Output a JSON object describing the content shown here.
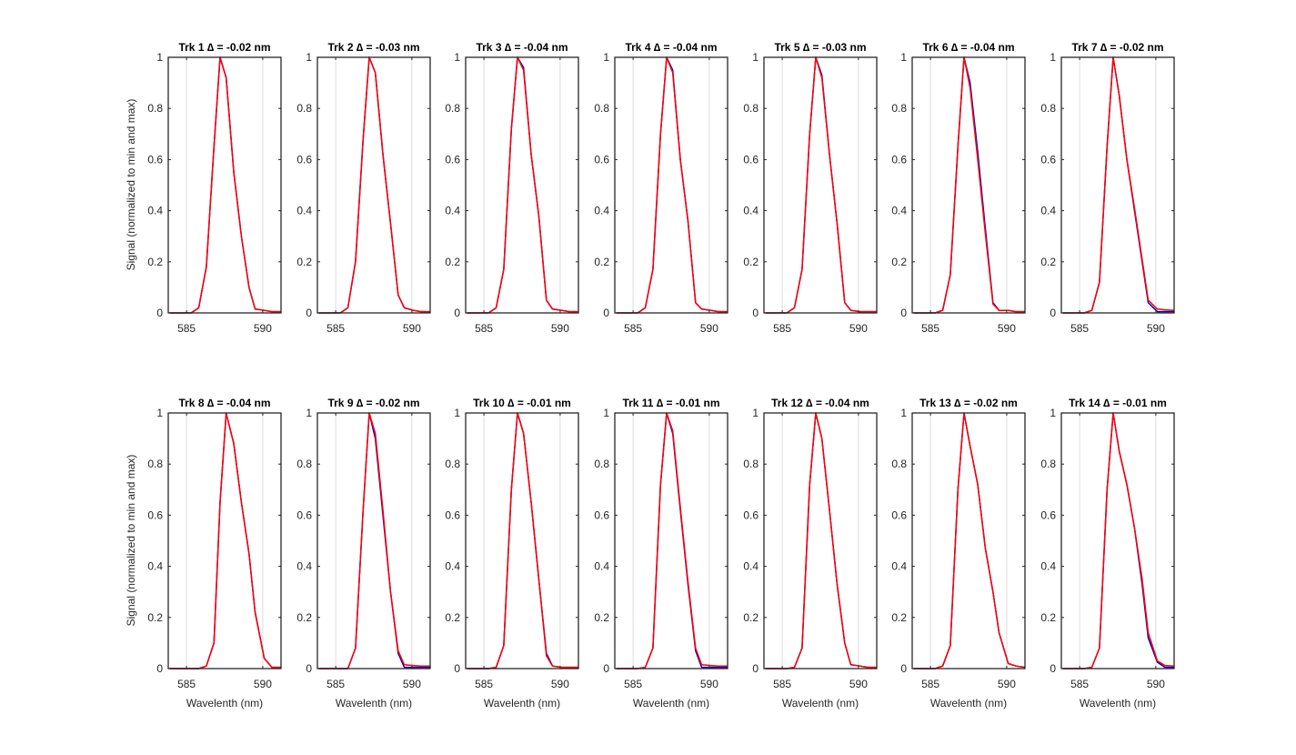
{
  "figure": {
    "ylabel": "Signal (normalized to min and max)",
    "xlabel": "Wavelenth (nm)",
    "colors": {
      "series_a": "#0000cc",
      "series_b": "#ff0000",
      "grid": "#dcdcdc",
      "axis": "#262626"
    }
  },
  "chart_data": [
    {
      "type": "line",
      "title": "Trk 1 ∆ = -0.02 nm",
      "xlim": [
        583.8,
        591.2
      ],
      "ylim": [
        0,
        1
      ],
      "xticks": [
        585,
        590
      ],
      "yticks": [
        0,
        0.2,
        0.4,
        0.6,
        0.8,
        1
      ],
      "grid": true,
      "x": [
        583.9,
        584.6,
        585.3,
        585.8,
        586.3,
        586.8,
        587.2,
        587.6,
        588.1,
        588.6,
        589.1,
        589.5,
        590.1,
        590.6,
        591.2
      ],
      "series": [
        {
          "values": [
            0,
            0,
            0,
            0.02,
            0.18,
            0.65,
            1.0,
            0.92,
            0.55,
            0.3,
            0.1,
            0.015,
            0.01,
            0.005,
            0.005
          ]
        },
        {
          "values": [
            0,
            0,
            0,
            0.02,
            0.18,
            0.65,
            1.0,
            0.92,
            0.55,
            0.3,
            0.1,
            0.015,
            0.01,
            0.005,
            0.005
          ]
        }
      ]
    },
    {
      "type": "line",
      "title": "Trk 2 ∆ = -0.03 nm",
      "xlim": [
        583.8,
        591.2
      ],
      "ylim": [
        0,
        1
      ],
      "xticks": [
        585,
        590
      ],
      "yticks": [
        0,
        0.2,
        0.4,
        0.6,
        0.8,
        1
      ],
      "grid": true,
      "x": [
        583.9,
        584.6,
        585.3,
        585.8,
        586.3,
        586.8,
        587.2,
        587.6,
        588.1,
        588.6,
        589.1,
        589.5,
        590.1,
        590.6,
        591.2
      ],
      "series": [
        {
          "values": [
            0,
            0,
            0,
            0.02,
            0.2,
            0.68,
            1.0,
            0.94,
            0.62,
            0.35,
            0.07,
            0.02,
            0.01,
            0.005,
            0.005
          ]
        },
        {
          "values": [
            0,
            0,
            0,
            0.02,
            0.2,
            0.68,
            1.0,
            0.94,
            0.62,
            0.35,
            0.07,
            0.02,
            0.01,
            0.005,
            0.005
          ]
        }
      ]
    },
    {
      "type": "line",
      "title": "Trk 3 ∆ = -0.04 nm",
      "xlim": [
        583.8,
        591.2
      ],
      "ylim": [
        0,
        1
      ],
      "xticks": [
        585,
        590
      ],
      "yticks": [
        0,
        0.2,
        0.4,
        0.6,
        0.8,
        1
      ],
      "grid": true,
      "x": [
        583.9,
        584.6,
        585.3,
        585.8,
        586.3,
        586.8,
        587.2,
        587.6,
        588.1,
        588.6,
        589.1,
        589.5,
        590.1,
        590.6,
        591.2
      ],
      "series": [
        {
          "values": [
            0,
            0,
            0,
            0.02,
            0.17,
            0.72,
            1.0,
            0.96,
            0.62,
            0.38,
            0.05,
            0.015,
            0.01,
            0.005,
            0.005
          ]
        },
        {
          "values": [
            0,
            0,
            0,
            0.02,
            0.17,
            0.72,
            1.0,
            0.95,
            0.62,
            0.38,
            0.05,
            0.015,
            0.01,
            0.005,
            0.005
          ]
        }
      ]
    },
    {
      "type": "line",
      "title": "Trk 4 ∆ = -0.04 nm",
      "xlim": [
        583.8,
        591.2
      ],
      "ylim": [
        0,
        1
      ],
      "xticks": [
        585,
        590
      ],
      "yticks": [
        0,
        0.2,
        0.4,
        0.6,
        0.8,
        1
      ],
      "grid": true,
      "x": [
        583.9,
        584.6,
        585.3,
        585.8,
        586.3,
        586.8,
        587.2,
        587.6,
        588.1,
        588.6,
        589.1,
        589.5,
        590.1,
        590.6,
        591.2
      ],
      "series": [
        {
          "values": [
            0,
            0,
            0,
            0.02,
            0.17,
            0.7,
            1.0,
            0.95,
            0.6,
            0.36,
            0.04,
            0.015,
            0.01,
            0.005,
            0.005
          ]
        },
        {
          "values": [
            0,
            0,
            0,
            0.02,
            0.17,
            0.7,
            1.0,
            0.94,
            0.6,
            0.36,
            0.04,
            0.015,
            0.01,
            0.005,
            0.005
          ]
        }
      ]
    },
    {
      "type": "line",
      "title": "Trk 5 ∆ = -0.03 nm",
      "xlim": [
        583.8,
        591.2
      ],
      "ylim": [
        0,
        1
      ],
      "xticks": [
        585,
        590
      ],
      "yticks": [
        0,
        0.2,
        0.4,
        0.6,
        0.8,
        1
      ],
      "grid": true,
      "x": [
        583.9,
        584.6,
        585.3,
        585.8,
        586.3,
        586.8,
        587.2,
        587.6,
        588.1,
        588.6,
        589.1,
        589.5,
        590.1,
        590.6,
        591.2
      ],
      "series": [
        {
          "values": [
            0,
            0,
            0,
            0.02,
            0.17,
            0.7,
            1.0,
            0.93,
            0.62,
            0.35,
            0.04,
            0.01,
            0.005,
            0.005,
            0.005
          ]
        },
        {
          "values": [
            0,
            0,
            0,
            0.02,
            0.17,
            0.7,
            1.0,
            0.92,
            0.62,
            0.35,
            0.04,
            0.01,
            0.005,
            0.005,
            0.005
          ]
        }
      ]
    },
    {
      "type": "line",
      "title": "Trk 6 ∆ = -0.04 nm",
      "xlim": [
        583.8,
        591.2
      ],
      "ylim": [
        0,
        1
      ],
      "xticks": [
        585,
        590
      ],
      "yticks": [
        0,
        0.2,
        0.4,
        0.6,
        0.8,
        1
      ],
      "grid": true,
      "x": [
        583.9,
        584.6,
        585.3,
        585.8,
        586.3,
        586.8,
        587.2,
        587.6,
        588.1,
        588.6,
        589.1,
        589.5,
        590.1,
        590.6,
        591.2
      ],
      "series": [
        {
          "values": [
            0,
            0,
            0,
            0.01,
            0.15,
            0.65,
            1.0,
            0.9,
            0.63,
            0.33,
            0.04,
            0.01,
            0.01,
            0.005,
            0.005
          ]
        },
        {
          "values": [
            0,
            0,
            0,
            0.01,
            0.15,
            0.65,
            1.0,
            0.88,
            0.6,
            0.31,
            0.035,
            0.01,
            0.01,
            0.005,
            0.005
          ]
        }
      ]
    },
    {
      "type": "line",
      "title": "Trk 7 ∆ = -0.02 nm",
      "xlim": [
        583.8,
        591.2
      ],
      "ylim": [
        0,
        1
      ],
      "xticks": [
        585,
        590
      ],
      "yticks": [
        0,
        0.2,
        0.4,
        0.6,
        0.8,
        1
      ],
      "grid": true,
      "x": [
        583.9,
        584.6,
        585.3,
        585.8,
        586.3,
        586.8,
        587.2,
        587.6,
        588.1,
        588.6,
        589.1,
        589.5,
        590.1,
        590.6,
        591.2
      ],
      "series": [
        {
          "values": [
            0,
            0,
            0,
            0.01,
            0.12,
            0.65,
            1.0,
            0.85,
            0.6,
            0.4,
            0.2,
            0.04,
            0.005,
            0.005,
            0.005
          ]
        },
        {
          "values": [
            0,
            0,
            0,
            0.01,
            0.12,
            0.65,
            1.0,
            0.85,
            0.6,
            0.41,
            0.21,
            0.05,
            0.015,
            0.012,
            0.01
          ]
        }
      ]
    },
    {
      "type": "line",
      "title": "Trk 8 ∆ = -0.04 nm",
      "xlim": [
        583.8,
        591.2
      ],
      "ylim": [
        0,
        1
      ],
      "xticks": [
        585,
        590
      ],
      "yticks": [
        0,
        0.2,
        0.4,
        0.6,
        0.8,
        1
      ],
      "grid": true,
      "x": [
        583.9,
        584.6,
        585.3,
        585.8,
        586.3,
        586.8,
        587.2,
        587.6,
        588.1,
        588.6,
        589.1,
        589.5,
        590.1,
        590.6,
        591.2
      ],
      "series": [
        {
          "values": [
            0,
            0,
            0,
            0,
            0.01,
            0.1,
            0.65,
            1.0,
            0.88,
            0.65,
            0.45,
            0.22,
            0.04,
            0.005,
            0.005
          ]
        },
        {
          "values": [
            0,
            0,
            0,
            0,
            0.01,
            0.1,
            0.65,
            1.0,
            0.88,
            0.65,
            0.45,
            0.22,
            0.04,
            0.005,
            0.005
          ]
        }
      ]
    },
    {
      "type": "line",
      "title": "Trk 9 ∆ = -0.02 nm",
      "xlim": [
        583.8,
        591.2
      ],
      "ylim": [
        0,
        1
      ],
      "xticks": [
        585,
        590
      ],
      "yticks": [
        0,
        0.2,
        0.4,
        0.6,
        0.8,
        1
      ],
      "grid": true,
      "x": [
        583.9,
        584.6,
        585.3,
        585.8,
        586.3,
        586.8,
        587.2,
        587.6,
        588.1,
        588.6,
        589.1,
        589.5,
        590.1,
        590.6,
        591.2
      ],
      "series": [
        {
          "values": [
            0,
            0,
            0,
            0,
            0.08,
            0.62,
            1.0,
            0.9,
            0.6,
            0.3,
            0.06,
            0.005,
            0.005,
            0.005,
            0.005
          ]
        },
        {
          "values": [
            0,
            0,
            0,
            0,
            0.08,
            0.62,
            1.0,
            0.92,
            0.62,
            0.3,
            0.07,
            0.015,
            0.012,
            0.01,
            0.01
          ]
        }
      ]
    },
    {
      "type": "line",
      "title": "Trk 10 ∆ = -0.01 nm",
      "xlim": [
        583.8,
        591.2
      ],
      "ylim": [
        0,
        1
      ],
      "xticks": [
        585,
        590
      ],
      "yticks": [
        0,
        0.2,
        0.4,
        0.6,
        0.8,
        1
      ],
      "grid": true,
      "x": [
        583.9,
        584.6,
        585.3,
        585.8,
        586.3,
        586.8,
        587.2,
        587.6,
        588.1,
        588.6,
        589.1,
        589.5,
        590.1,
        590.6,
        591.2
      ],
      "series": [
        {
          "values": [
            0,
            0,
            0,
            0.005,
            0.09,
            0.7,
            1.0,
            0.92,
            0.65,
            0.35,
            0.06,
            0.01,
            0.005,
            0.005,
            0.005
          ]
        },
        {
          "values": [
            0,
            0,
            0,
            0.005,
            0.09,
            0.7,
            1.0,
            0.92,
            0.65,
            0.35,
            0.05,
            0.01,
            0.005,
            0.005,
            0.005
          ]
        }
      ]
    },
    {
      "type": "line",
      "title": "Trk 11 ∆ = -0.01 nm",
      "xlim": [
        583.8,
        591.2
      ],
      "ylim": [
        0,
        1
      ],
      "xticks": [
        585,
        590
      ],
      "yticks": [
        0,
        0.2,
        0.4,
        0.6,
        0.8,
        1
      ],
      "grid": true,
      "x": [
        583.9,
        584.6,
        585.3,
        585.8,
        586.3,
        586.8,
        587.2,
        587.6,
        588.1,
        588.6,
        589.1,
        589.5,
        590.1,
        590.6,
        591.2
      ],
      "series": [
        {
          "values": [
            0,
            0,
            0,
            0.005,
            0.08,
            0.72,
            1.0,
            0.92,
            0.62,
            0.33,
            0.07,
            0.005,
            0.005,
            0.005,
            0.005
          ]
        },
        {
          "values": [
            0,
            0,
            0,
            0.005,
            0.08,
            0.72,
            1.0,
            0.93,
            0.63,
            0.34,
            0.08,
            0.015,
            0.012,
            0.01,
            0.01
          ]
        }
      ]
    },
    {
      "type": "line",
      "title": "Trk 12 ∆ = -0.04 nm",
      "xlim": [
        583.8,
        591.2
      ],
      "ylim": [
        0,
        1
      ],
      "xticks": [
        585,
        590
      ],
      "yticks": [
        0,
        0.2,
        0.4,
        0.6,
        0.8,
        1
      ],
      "grid": true,
      "x": [
        583.9,
        584.6,
        585.3,
        585.8,
        586.3,
        586.8,
        587.2,
        587.6,
        588.1,
        588.6,
        589.1,
        589.5,
        590.1,
        590.6,
        591.2
      ],
      "series": [
        {
          "values": [
            0,
            0,
            0,
            0.005,
            0.08,
            0.72,
            1.0,
            0.9,
            0.62,
            0.33,
            0.1,
            0.015,
            0.01,
            0.005,
            0.005
          ]
        },
        {
          "values": [
            0,
            0,
            0,
            0.005,
            0.08,
            0.72,
            1.0,
            0.9,
            0.62,
            0.33,
            0.1,
            0.015,
            0.01,
            0.005,
            0.005
          ]
        }
      ]
    },
    {
      "type": "line",
      "title": "Trk 13 ∆ = -0.02 nm",
      "xlim": [
        583.8,
        591.2
      ],
      "ylim": [
        0,
        1
      ],
      "xticks": [
        585,
        590
      ],
      "yticks": [
        0,
        0.2,
        0.4,
        0.6,
        0.8,
        1
      ],
      "grid": true,
      "x": [
        583.9,
        584.6,
        585.3,
        585.8,
        586.3,
        586.8,
        587.2,
        587.6,
        588.1,
        588.6,
        589.1,
        589.5,
        590.1,
        590.6,
        591.2
      ],
      "series": [
        {
          "values": [
            0,
            0,
            0,
            0.01,
            0.09,
            0.7,
            1.0,
            0.87,
            0.72,
            0.47,
            0.3,
            0.14,
            0.02,
            0.01,
            0.005
          ]
        },
        {
          "values": [
            0,
            0,
            0,
            0.01,
            0.09,
            0.7,
            1.0,
            0.87,
            0.72,
            0.47,
            0.3,
            0.14,
            0.02,
            0.01,
            0.005
          ]
        }
      ]
    },
    {
      "type": "line",
      "title": "Trk 14 ∆ = -0.01 nm",
      "xlim": [
        583.8,
        591.2
      ],
      "ylim": [
        0,
        1
      ],
      "xticks": [
        585,
        590
      ],
      "yticks": [
        0,
        0.2,
        0.4,
        0.6,
        0.8,
        1
      ],
      "grid": true,
      "x": [
        583.9,
        584.6,
        585.3,
        585.8,
        586.3,
        586.8,
        587.2,
        587.6,
        588.1,
        588.6,
        589.1,
        589.5,
        590.1,
        590.6,
        591.2
      ],
      "series": [
        {
          "values": [
            0,
            0,
            0,
            0.005,
            0.08,
            0.7,
            1.0,
            0.85,
            0.72,
            0.55,
            0.33,
            0.12,
            0.025,
            0.005,
            0.005
          ]
        },
        {
          "values": [
            0,
            0,
            0,
            0.005,
            0.08,
            0.7,
            1.0,
            0.85,
            0.72,
            0.55,
            0.35,
            0.14,
            0.03,
            0.012,
            0.01
          ]
        }
      ]
    }
  ]
}
